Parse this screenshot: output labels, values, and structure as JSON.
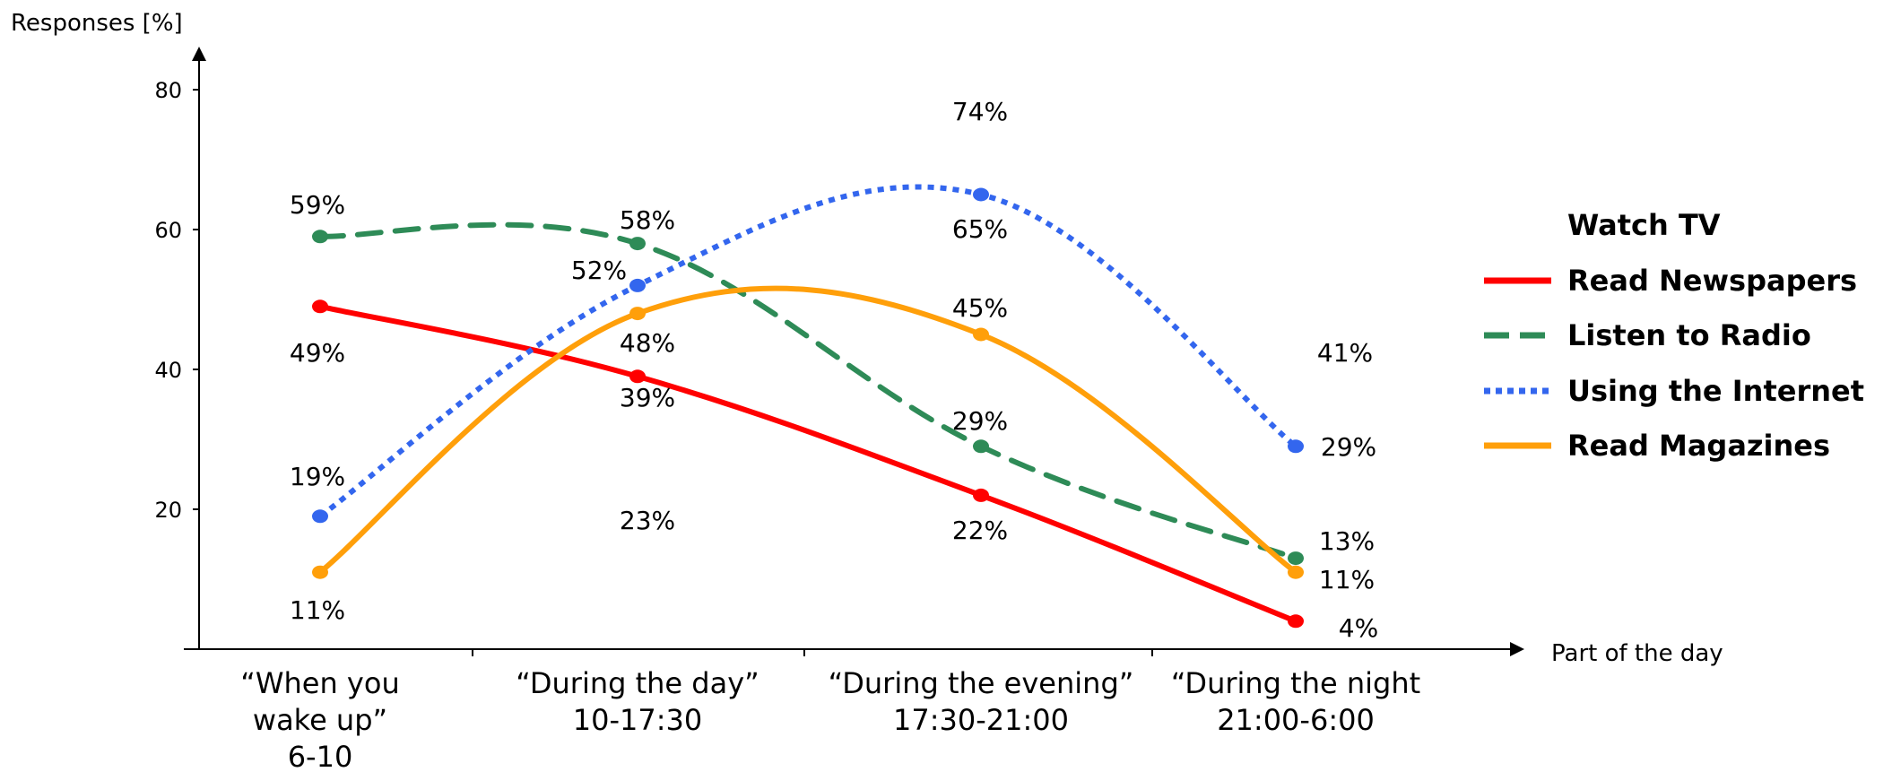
{
  "chart_data": {
    "type": "line",
    "title": "",
    "ylabel": "Responses [%]",
    "xlabel": "Part of the day",
    "ylim": [
      0,
      80
    ],
    "yticks": [
      20,
      40,
      60,
      80
    ],
    "grid": false,
    "legend_position": "right",
    "categories": [
      [
        "“When you",
        "wake up”",
        "6-10"
      ],
      [
        "“During the day”",
        "10-17:30"
      ],
      [
        "“During the evening”",
        "17:30-21:00"
      ],
      [
        "“During the night",
        "21:00-6:00"
      ]
    ],
    "series": [
      {
        "name": "Watch TV",
        "color": "#000000",
        "style": "none",
        "values": [
          null,
          23,
          74,
          41
        ],
        "labels": [
          "",
          "23%",
          "74%",
          "41%"
        ]
      },
      {
        "name": "Read Newspapers",
        "color": "#ff0000",
        "style": "solid",
        "values": [
          49,
          39,
          22,
          4
        ],
        "labels": [
          "49%",
          "39%",
          "22%",
          "4%"
        ]
      },
      {
        "name": "Listen to Radio",
        "color": "#2e8b57",
        "style": "dashed",
        "values": [
          59,
          58,
          29,
          13
        ],
        "labels": [
          "59%",
          "58%",
          "29%",
          "13%"
        ]
      },
      {
        "name": "Using the Internet",
        "color": "#3366ee",
        "style": "dotted",
        "values": [
          19,
          52,
          65,
          29
        ],
        "labels": [
          "19%",
          "52%",
          "65%",
          "29%"
        ]
      },
      {
        "name": "Read Magazines",
        "color": "#ff9f0a",
        "style": "solid",
        "values": [
          11,
          48,
          45,
          11
        ],
        "labels": [
          "11%",
          "48%",
          "45%",
          "11%"
        ]
      }
    ]
  }
}
